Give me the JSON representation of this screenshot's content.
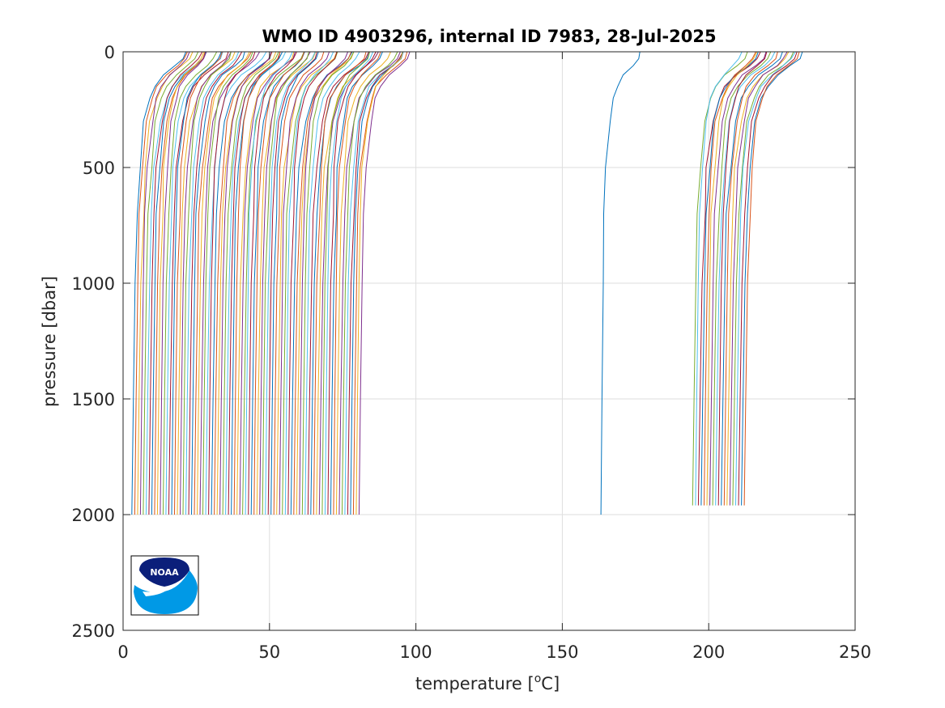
{
  "chart_data": {
    "type": "line",
    "title": "WMO ID 4903296, internal ID 7983, 28-Jul-2025",
    "xlabel": "temperature [",
    "xlabel_sup": "o",
    "xlabel_end": "C]",
    "ylabel": "pressure [dbar]",
    "xlim": [
      0,
      250
    ],
    "ylim": [
      0,
      2500
    ],
    "y_reversed": true,
    "grid": true,
    "xticks": [
      0,
      50,
      100,
      150,
      200,
      250
    ],
    "yticks": [
      0,
      500,
      1000,
      1500,
      2000,
      2500
    ],
    "xtick_labels": [
      "0",
      "50",
      "100",
      "150",
      "200",
      "250"
    ],
    "ytick_labels": [
      "0",
      "500",
      "1000",
      "1500",
      "2000",
      "2500"
    ],
    "profile_shape": {
      "pressure": [
        0,
        30,
        60,
        100,
        150,
        200,
        300,
        500,
        700,
        1000,
        1500,
        2000
      ],
      "offset": [
        18.5,
        17.5,
        15.0,
        11.0,
        8.0,
        6.2,
        4.3,
        2.6,
        1.8,
        1.1,
        0.5,
        0.0
      ]
    },
    "series_groups": [
      {
        "bottom_start": 3,
        "bottom_step": 0.97,
        "count": 81,
        "max_pressure": 2000
      },
      {
        "bottom_start": 194.5,
        "bottom_step": 0.98,
        "count": 19,
        "max_pressure": 1960
      }
    ],
    "single_series": {
      "bottom": 163.2,
      "surface": 176.5,
      "max_pressure": 2000
    },
    "colors": [
      "#0072BD",
      "#D95319",
      "#EDB120",
      "#7E2F8E",
      "#77AC30",
      "#4DBEEE",
      "#A2142F"
    ]
  },
  "logo": {
    "text": "NOAA",
    "colors": {
      "dark": "#0b1f7a",
      "light": "#0099e6"
    }
  }
}
